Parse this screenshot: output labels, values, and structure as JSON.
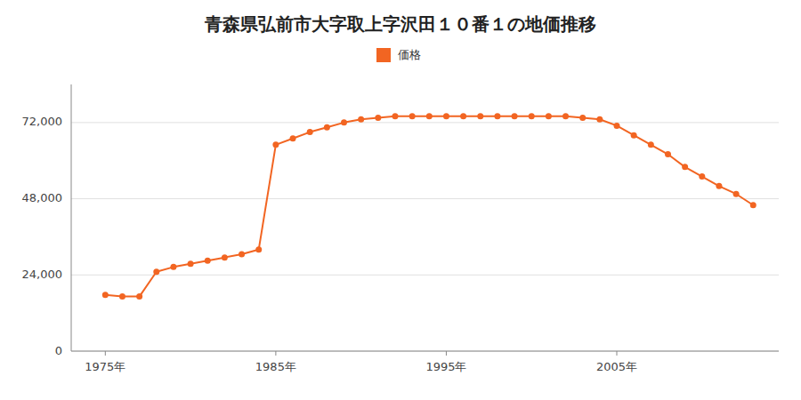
{
  "chart_data": {
    "type": "line",
    "title": "青森県弘前市大字取上字沢田１０番１の地価推移",
    "x": [
      1975,
      1976,
      1977,
      1978,
      1979,
      1980,
      1981,
      1982,
      1983,
      1984,
      1985,
      1986,
      1987,
      1988,
      1989,
      1990,
      1991,
      1992,
      1993,
      1994,
      1995,
      1996,
      1997,
      1998,
      1999,
      2000,
      2001,
      2002,
      2003,
      2004,
      2005,
      2006,
      2007,
      2008,
      2009,
      2010,
      2011,
      2012,
      2013
    ],
    "series": [
      {
        "name": "価格",
        "color": "#f26522",
        "marker": "circle",
        "values": [
          17700,
          17200,
          17200,
          25000,
          26500,
          27500,
          28500,
          29500,
          30500,
          32000,
          65000,
          67000,
          69000,
          70500,
          72000,
          73000,
          73500,
          74000,
          74000,
          74000,
          74000,
          74000,
          74000,
          74000,
          74000,
          74000,
          74000,
          74000,
          73500,
          73000,
          71000,
          68000,
          65000,
          62000,
          58000,
          55000,
          52000,
          49500,
          46000
        ]
      }
    ],
    "xlim": [
      1973,
      2014.5
    ],
    "xticks": [
      {
        "value": 1975,
        "label": "1975年"
      },
      {
        "value": 1985,
        "label": "1985年"
      },
      {
        "value": 1995,
        "label": "1995年"
      },
      {
        "value": 2005,
        "label": "2005年"
      }
    ],
    "ylim": [
      0,
      84000
    ],
    "yticks": [
      0,
      {
        "value": 24000,
        "label": "24,000"
      },
      {
        "value": 48000,
        "label": "48,000"
      },
      {
        "value": 72000,
        "label": "72,000"
      }
    ],
    "grid": true,
    "legend": "top"
  }
}
